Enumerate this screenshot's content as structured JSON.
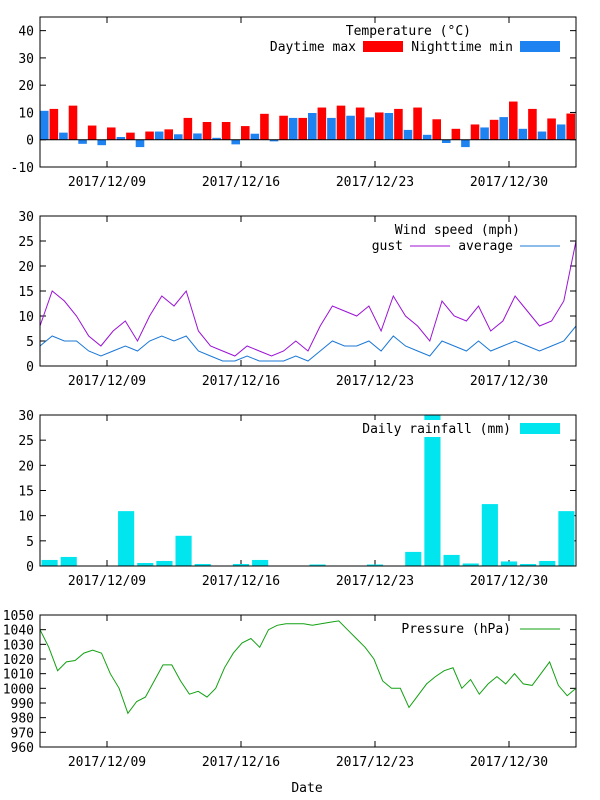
{
  "xlabel": "Date",
  "date_ticks": [
    "2017/12/09",
    "2017/12/16",
    "2017/12/23",
    "2017/12/30"
  ],
  "colors": {
    "max": "#ff0000",
    "min": "#1e82f0",
    "gust": "#9b12d6",
    "avg": "#1b78d6",
    "rain": "#00e5ee",
    "pressure": "#12a012"
  },
  "chart_data": [
    {
      "type": "bar",
      "title": "Temperature (°C)",
      "ylim": [
        -10,
        45
      ],
      "yticks": [
        -10,
        0,
        10,
        20,
        30,
        40
      ],
      "series": [
        {
          "name": "Daytime max",
          "values": [
            11.3,
            12.5,
            5.2,
            4.5,
            2.6,
            3.0,
            3.8,
            8.0,
            6.5,
            6.5,
            5.0,
            9.5,
            8.8,
            8.0,
            11.8,
            12.5,
            11.8,
            10.0,
            11.3,
            11.8,
            7.5,
            4.0,
            5.6,
            7.3,
            14.0,
            11.3,
            7.8,
            9.6
          ]
        },
        {
          "name": "Nighttime min",
          "values": [
            10.6,
            2.6,
            -1.5,
            -2.0,
            1.0,
            -2.7,
            3.0,
            2.0,
            2.3,
            0.7,
            -1.7,
            2.2,
            -0.6,
            8.0,
            9.8,
            8.0,
            8.8,
            8.2,
            9.8,
            3.6,
            1.8,
            -1.2,
            -2.7,
            4.5,
            8.3,
            4.0,
            3.0,
            5.6
          ]
        }
      ]
    },
    {
      "type": "line",
      "title": "Wind speed (mph)",
      "ylim": [
        0,
        30
      ],
      "yticks": [
        0,
        5,
        10,
        15,
        20,
        25,
        30
      ],
      "series": [
        {
          "name": "gust",
          "values": [
            8,
            15,
            13,
            10,
            6,
            4,
            7,
            9,
            5,
            10,
            14,
            12,
            15,
            7,
            4,
            3,
            2,
            4,
            3,
            2,
            3,
            5,
            3,
            8,
            12,
            11,
            10,
            12,
            7,
            14,
            10,
            8,
            5,
            13,
            10,
            9,
            12,
            7,
            9,
            14,
            11,
            8,
            9,
            13,
            25
          ]
        },
        {
          "name": "average",
          "values": [
            4,
            6,
            5,
            5,
            3,
            2,
            3,
            4,
            3,
            5,
            6,
            5,
            6,
            3,
            2,
            1,
            1,
            2,
            1,
            1,
            1,
            2,
            1,
            3,
            5,
            4,
            4,
            5,
            3,
            6,
            4,
            3,
            2,
            5,
            4,
            3,
            5,
            3,
            4,
            5,
            4,
            3,
            4,
            5,
            8
          ]
        }
      ]
    },
    {
      "type": "bar",
      "title": "Daily rainfall (mm)",
      "ylim": [
        0,
        30
      ],
      "yticks": [
        0,
        5,
        10,
        15,
        20,
        25,
        30
      ],
      "series": [
        {
          "name": "Daily rainfall (mm)",
          "values": [
            1.2,
            1.8,
            0,
            0,
            10.9,
            0.6,
            1.0,
            6.0,
            0.4,
            0,
            0.4,
            1.2,
            0,
            0,
            0.3,
            0,
            0,
            0.3,
            0,
            2.8,
            30,
            2.2,
            0.5,
            12.3,
            0.9,
            0.4,
            1.0,
            10.9
          ]
        }
      ]
    },
    {
      "type": "line",
      "title": "Pressure (hPa)",
      "ylim": [
        960,
        1050
      ],
      "yticks": [
        960,
        970,
        980,
        990,
        1000,
        1010,
        1020,
        1030,
        1040,
        1050
      ],
      "series": [
        {
          "name": "Pressure (hPa)",
          "values": [
            1040,
            1028,
            1012,
            1018,
            1019,
            1024,
            1026,
            1024,
            1010,
            1000,
            983,
            991,
            994,
            1005,
            1016,
            1016,
            1005,
            996,
            998,
            994,
            1000,
            1014,
            1024,
            1031,
            1034,
            1028,
            1040,
            1043,
            1044,
            1044,
            1044,
            1043,
            1044,
            1045,
            1046,
            1040,
            1034,
            1028,
            1020,
            1005,
            1000,
            1000,
            987,
            995,
            1003,
            1008,
            1012,
            1014,
            1000,
            1006,
            996,
            1003,
            1008,
            1003,
            1010,
            1003,
            1002,
            1010,
            1018,
            1002,
            995,
            1000
          ]
        }
      ]
    }
  ]
}
